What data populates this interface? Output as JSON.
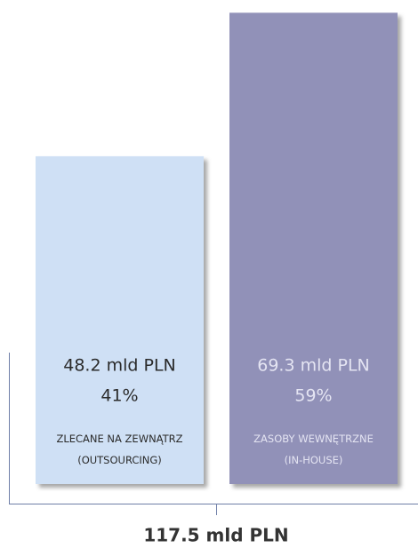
{
  "chart_data": {
    "type": "bar",
    "categories": [
      "ZLECANE NA ZEWNĄTRZ\n(OUTSOURCING)",
      "ZASOBY WEWNĘTRZNE\n(IN-HOUSE)"
    ],
    "values": [
      48.2,
      69.3
    ],
    "value_labels": [
      "48.2 mld PLN",
      "69.3 mld PLN"
    ],
    "shares": {
      "values": [
        41,
        59
      ],
      "value_labels": [
        "41%",
        "59%"
      ]
    },
    "colors": [
      "#cfe0f5",
      "#9191b8"
    ],
    "text_colors": [
      "#2b2b2b",
      "#e4e4f2"
    ],
    "ylim": [
      0,
      70
    ],
    "total": "117.5 mld PLN"
  }
}
